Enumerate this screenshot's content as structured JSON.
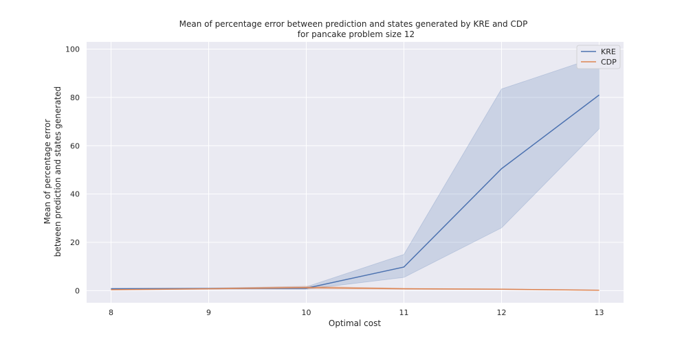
{
  "chart_data": {
    "type": "line",
    "title": "Mean of percentage error between prediction and states generated by KRE and CDP",
    "subtitle": "for pancake problem size 12",
    "xlabel": "Optimal cost",
    "ylabel": "Mean of percentage error",
    "ylabel2": "between prediction and states generated",
    "x": [
      8,
      9,
      10,
      11,
      12,
      13
    ],
    "xlim": [
      7.75,
      13.25
    ],
    "ylim": [
      -5,
      103
    ],
    "xticks": [
      8,
      9,
      10,
      11,
      12,
      13
    ],
    "yticks": [
      0,
      20,
      40,
      60,
      80,
      100
    ],
    "xtick_labels": [
      "8",
      "9",
      "10",
      "11",
      "12",
      "13"
    ],
    "ytick_labels": [
      "0",
      "20",
      "40",
      "60",
      "80",
      "100"
    ],
    "grid": true,
    "legend_position": "top-right",
    "series": [
      {
        "name": "KRE",
        "color": "#4c72b0",
        "values": [
          0.8,
          0.9,
          1.0,
          9.8,
          50.5,
          81.0
        ],
        "ci_low": [
          0.6,
          0.7,
          0.6,
          5.5,
          26.0,
          67.0
        ],
        "ci_high": [
          1.0,
          1.1,
          1.6,
          15.0,
          83.5,
          97.0
        ]
      },
      {
        "name": "CDP",
        "color": "#dd8452",
        "values": [
          0.4,
          0.8,
          1.3,
          0.8,
          0.6,
          0.2
        ],
        "ci_low": [
          0.3,
          0.6,
          0.8,
          0.6,
          0.5,
          0.1
        ],
        "ci_high": [
          0.5,
          1.0,
          1.9,
          1.0,
          0.7,
          0.3
        ]
      }
    ]
  }
}
